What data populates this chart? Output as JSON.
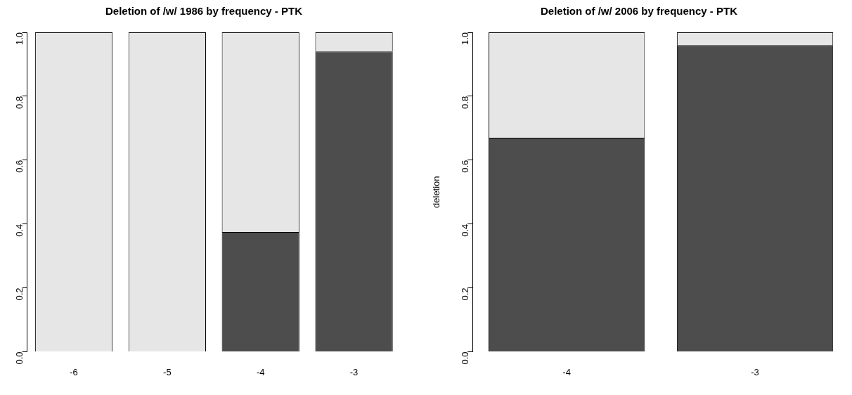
{
  "chart_data": [
    {
      "type": "bar",
      "title": "Deletion of /w/ 1986 by frequency - PTK",
      "categories": [
        "-6",
        "-5",
        "-4",
        "-3"
      ],
      "stacked": true,
      "ylim": [
        0,
        1
      ],
      "yticks": [
        {
          "value": 0,
          "label": "0.0"
        },
        {
          "value": 0.2,
          "label": "0.2"
        },
        {
          "value": 0.4,
          "label": "0.4"
        },
        {
          "value": 0.6,
          "label": "0.6"
        },
        {
          "value": 0.8,
          "label": "0.8"
        },
        {
          "value": 1,
          "label": "1.0"
        }
      ],
      "series": [
        {
          "color": "#4d4d4d",
          "values": [
            0,
            0,
            0.375,
            0.94
          ]
        },
        {
          "color": "#e6e6e6",
          "values": [
            1,
            1,
            0.625,
            0.06
          ]
        }
      ]
    },
    {
      "type": "bar",
      "title": "Deletion of /w/ 2006 by frequency - PTK",
      "ylabel": "deletion",
      "categories": [
        "-4",
        "-3"
      ],
      "stacked": true,
      "ylim": [
        0,
        1
      ],
      "yticks": [
        {
          "value": 0,
          "label": "0.0"
        },
        {
          "value": 0.2,
          "label": "0.2"
        },
        {
          "value": 0.4,
          "label": "0.4"
        },
        {
          "value": 0.6,
          "label": "0.6"
        },
        {
          "value": 0.8,
          "label": "0.8"
        },
        {
          "value": 1,
          "label": "1.0"
        }
      ],
      "series": [
        {
          "color": "#4d4d4d",
          "values": [
            0.67,
            0.96
          ]
        },
        {
          "color": "#e6e6e6",
          "values": [
            0.33,
            0.04
          ]
        }
      ]
    }
  ]
}
